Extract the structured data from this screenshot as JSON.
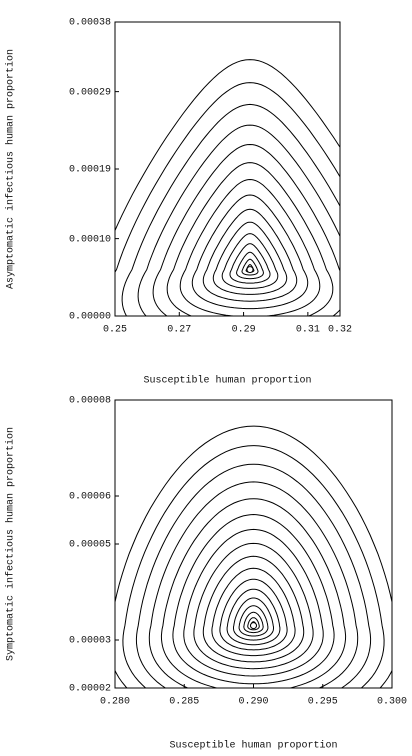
{
  "chart_data": [
    {
      "type": "phase",
      "xlabel": "Susceptible human proportion",
      "ylabel": "Asymptomatic infectious human proportion",
      "xlim": [
        0.25,
        0.32
      ],
      "xticks": [
        0.25,
        0.27,
        0.29,
        0.31,
        0.32
      ],
      "ylim": [
        0,
        0.00038
      ],
      "yticks": [
        {
          "value": 0,
          "label": "0.00000"
        },
        {
          "value": 0.0001,
          "label": "0.00010"
        },
        0.00019,
        0.00029,
        0.00038
      ],
      "center": {
        "x": 0.292,
        "y": 6e-05
      }
    },
    {
      "type": "phase",
      "xlabel": "Susceptible human proportion",
      "ylabel": "Symptomatic infectious human proportion",
      "xlim": [
        0.28,
        0.3
      ],
      "xticks": [
        {
          "value": 0.28,
          "label": "0.280"
        },
        0.285,
        {
          "value": 0.29,
          "label": "0.290"
        },
        0.295,
        {
          "value": 0.3,
          "label": "0.300"
        }
      ],
      "ylim": [
        2e-05,
        8e-05
      ],
      "yticks": [
        2e-05,
        3e-05,
        5e-05,
        6e-05,
        8e-05
      ],
      "center": {
        "x": 0.29,
        "y": 3.3e-05
      }
    }
  ]
}
